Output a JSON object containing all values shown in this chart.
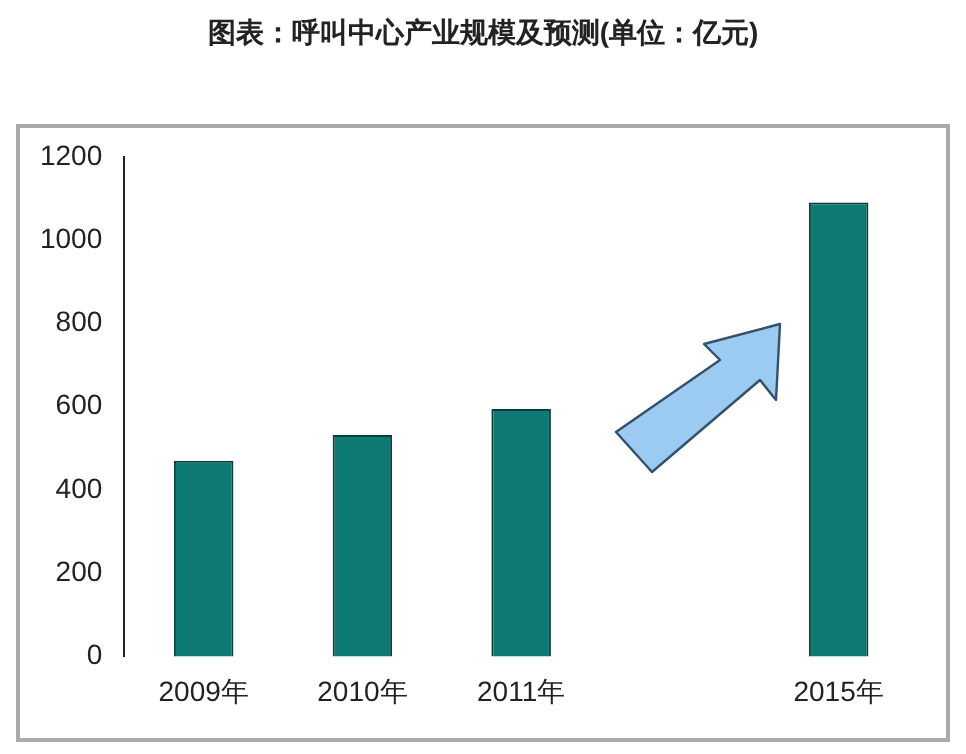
{
  "chart_data": {
    "type": "bar",
    "title": "图表：呼叫中心产业规模及预测(单位：亿元)",
    "categories": [
      "2009年",
      "2010年",
      "2011年",
      null,
      "2015年"
    ],
    "values": [
      470,
      532,
      594,
      null,
      1090
    ],
    "color": "#0d7a73",
    "ylim": [
      0,
      1200
    ],
    "yticks": [
      0,
      200,
      400,
      600,
      800,
      1000,
      1200
    ],
    "grid": false,
    "legend": false
  }
}
